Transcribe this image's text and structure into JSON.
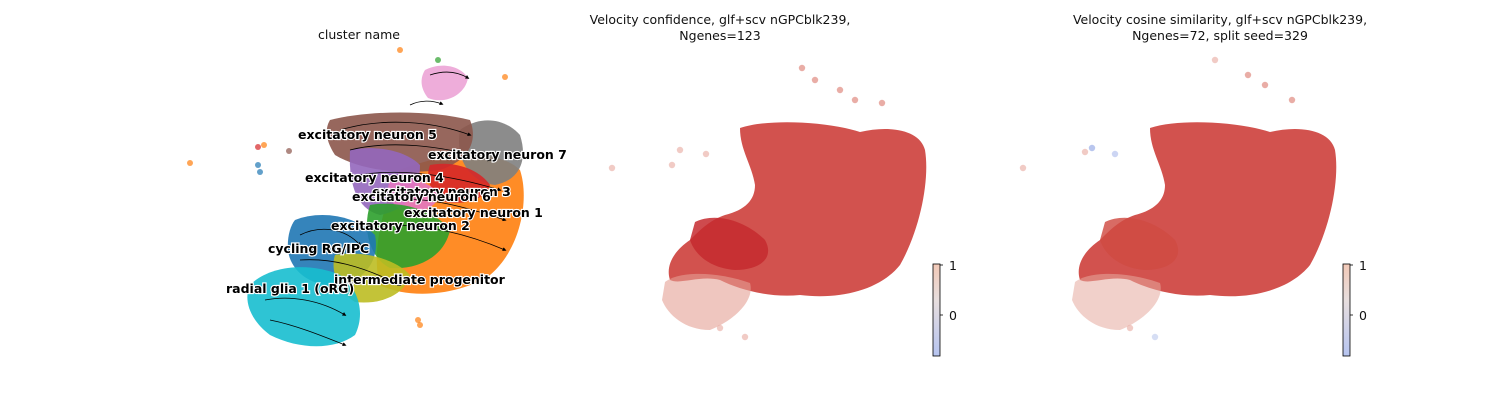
{
  "panels": [
    {
      "title": "cluster name"
    },
    {
      "title_line1": "Velocity confidence, glf+scv nGPCblk239,",
      "title_line2": "Ngenes=123"
    },
    {
      "title_line1": "Velocity cosine similarity, glf+scv nGPCblk239,",
      "title_line2": "Ngenes=72, split seed=329"
    }
  ],
  "chart_data": [
    {
      "type": "scatter",
      "subtype": "embedding with velocity streamlines",
      "title": "cluster name",
      "axes_visible": false,
      "clusters": [
        {
          "name": "excitatory neuron 5",
          "color": "#8c564b"
        },
        {
          "name": "excitatory neuron 7",
          "color": "#7f7f7f"
        },
        {
          "name": "excitatory neuron 4",
          "color": "#9467bd"
        },
        {
          "name": "excitatory neuron 3",
          "color": "#d62728"
        },
        {
          "name": "excitatory neuron 6",
          "color": "#e377c2"
        },
        {
          "name": "excitatory neuron 1",
          "color": "#ff7f0e"
        },
        {
          "name": "excitatory neuron 2",
          "color": "#2ca02c"
        },
        {
          "name": "cycling RG/IPC",
          "color": "#1f77b4"
        },
        {
          "name": "intermediate progenitor",
          "color": "#bcbd22"
        },
        {
          "name": "radial glia 1 (oRG)",
          "color": "#17becf"
        }
      ]
    },
    {
      "type": "scatter",
      "subtype": "embedding colored by continuous value",
      "title": "Velocity confidence, glf+scv nGPCblk239, Ngenes=123",
      "colormap": "coolwarm",
      "colorbar_ticks": [
        "1",
        "0"
      ],
      "dominant_color": "#c8282a",
      "axes_visible": false
    },
    {
      "type": "scatter",
      "subtype": "embedding colored by continuous value",
      "title": "Velocity cosine similarity, glf+scv nGPCblk239, Ngenes=72, split seed=329",
      "colormap": "coolwarm",
      "colorbar_ticks": [
        "1",
        "0"
      ],
      "dominant_color": "#c8282a",
      "axes_visible": false
    }
  ]
}
